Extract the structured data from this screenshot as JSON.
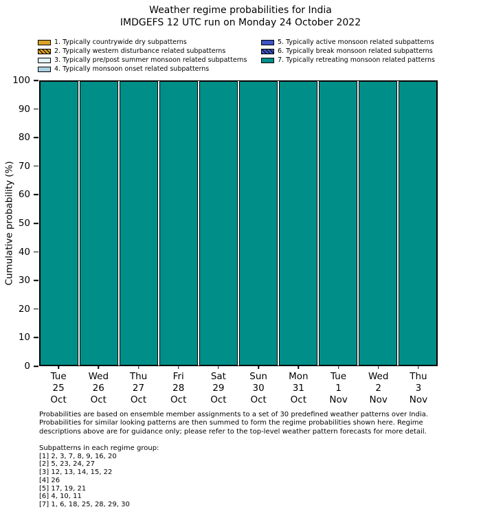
{
  "title": {
    "line1": "Weather regime probabilities for India",
    "line2": "IMDGEFS 12 UTC run on Monday 24 October 2022"
  },
  "legend": {
    "columns": [
      [
        {
          "label": "1. Typically countrywide dry subpatterns",
          "color": "#d8a128",
          "hatch": false
        },
        {
          "label": "2. Typically western disturbance related subpatterns",
          "color": "#d8a128",
          "hatch": true
        },
        {
          "label": "3. Typically pre/post summer monsoon related subpatterns",
          "color": "#e2f3f9",
          "hatch": false
        },
        {
          "label": "4. Typically monsoon onset related subpatterns",
          "color": "#abd2e4",
          "hatch": false
        }
      ],
      [
        {
          "label": "5. Typically active monsoon related subpatterns",
          "color": "#3c54c6",
          "hatch": false
        },
        {
          "label": "6. Typically break monsoon related subpatterns",
          "color": "#3c54c6",
          "hatch": true
        },
        {
          "label": "7. Typically retreating monsoon related patterns",
          "color": "#008e89",
          "hatch": false
        }
      ]
    ]
  },
  "chart_data": {
    "type": "bar",
    "stacked": true,
    "title": "Weather regime probabilities for India",
    "subtitle": "IMDGEFS 12 UTC run on Monday 24 October 2022",
    "ylabel": "Cumulative probability (%)",
    "ylim": [
      0,
      100
    ],
    "yticks": [
      0,
      10,
      20,
      30,
      40,
      50,
      60,
      70,
      80,
      90,
      100
    ],
    "grid": false,
    "legend_position": "top",
    "categories": [
      {
        "day": "Tue",
        "date": "25",
        "month": "Oct"
      },
      {
        "day": "Wed",
        "date": "26",
        "month": "Oct"
      },
      {
        "day": "Thu",
        "date": "27",
        "month": "Oct"
      },
      {
        "day": "Fri",
        "date": "28",
        "month": "Oct"
      },
      {
        "day": "Sat",
        "date": "29",
        "month": "Oct"
      },
      {
        "day": "Sun",
        "date": "30",
        "month": "Oct"
      },
      {
        "day": "Mon",
        "date": "31",
        "month": "Oct"
      },
      {
        "day": "Tue",
        "date": "1",
        "month": "Nov"
      },
      {
        "day": "Wed",
        "date": "2",
        "month": "Nov"
      },
      {
        "day": "Thu",
        "date": "3",
        "month": "Nov"
      }
    ],
    "series": [
      {
        "name": "1. Typically countrywide dry subpatterns",
        "color": "#d8a128",
        "values": [
          0,
          0,
          0,
          0,
          0,
          0,
          0,
          0,
          0,
          0
        ]
      },
      {
        "name": "2. Typically western disturbance related subpatterns",
        "color": "#d8a128",
        "values": [
          0,
          0,
          0,
          0,
          0,
          0,
          0,
          0,
          0,
          0
        ]
      },
      {
        "name": "3. Typically pre/post summer monsoon related subpatterns",
        "color": "#e2f3f9",
        "values": [
          0,
          0,
          0,
          0,
          0,
          0,
          0,
          0,
          0,
          0
        ]
      },
      {
        "name": "4. Typically monsoon onset related subpatterns",
        "color": "#abd2e4",
        "values": [
          0,
          0,
          0,
          0,
          0,
          0,
          0,
          0,
          0,
          0
        ]
      },
      {
        "name": "5. Typically active monsoon related subpatterns",
        "color": "#3c54c6",
        "values": [
          0,
          0,
          0,
          0,
          0,
          0,
          0,
          0,
          0,
          0
        ]
      },
      {
        "name": "6. Typically break monsoon related subpatterns",
        "color": "#3c54c6",
        "values": [
          0,
          0,
          0,
          0,
          0,
          0,
          0,
          0,
          0,
          0
        ]
      },
      {
        "name": "7. Typically retreating monsoon related patterns",
        "color": "#008e89",
        "values": [
          100,
          100,
          100,
          100,
          100,
          100,
          100,
          100,
          100,
          100
        ]
      }
    ]
  },
  "notes": {
    "lines": [
      "Probabilities are based on ensemble member assignments to a set of 30 predefined weather patterns over India.",
      "Probabilities for similar looking patterns are then summed to form the regime probabilities shown here. Regime",
      "descriptions above are for guidance only; please refer to the top-level weather pattern forecasts for more detail."
    ]
  },
  "subpatterns": {
    "heading": "Subpatterns in each regime group:",
    "groups": [
      "[1] 2, 3, 7, 8, 9, 16, 20",
      "[2] 5, 23, 24, 27",
      "[3] 12, 13, 14, 15, 22",
      "[4] 26",
      "[5] 17, 19, 21",
      "[6] 4, 10, 11",
      "[7] 1, 6, 18, 25, 28, 29, 30"
    ]
  }
}
